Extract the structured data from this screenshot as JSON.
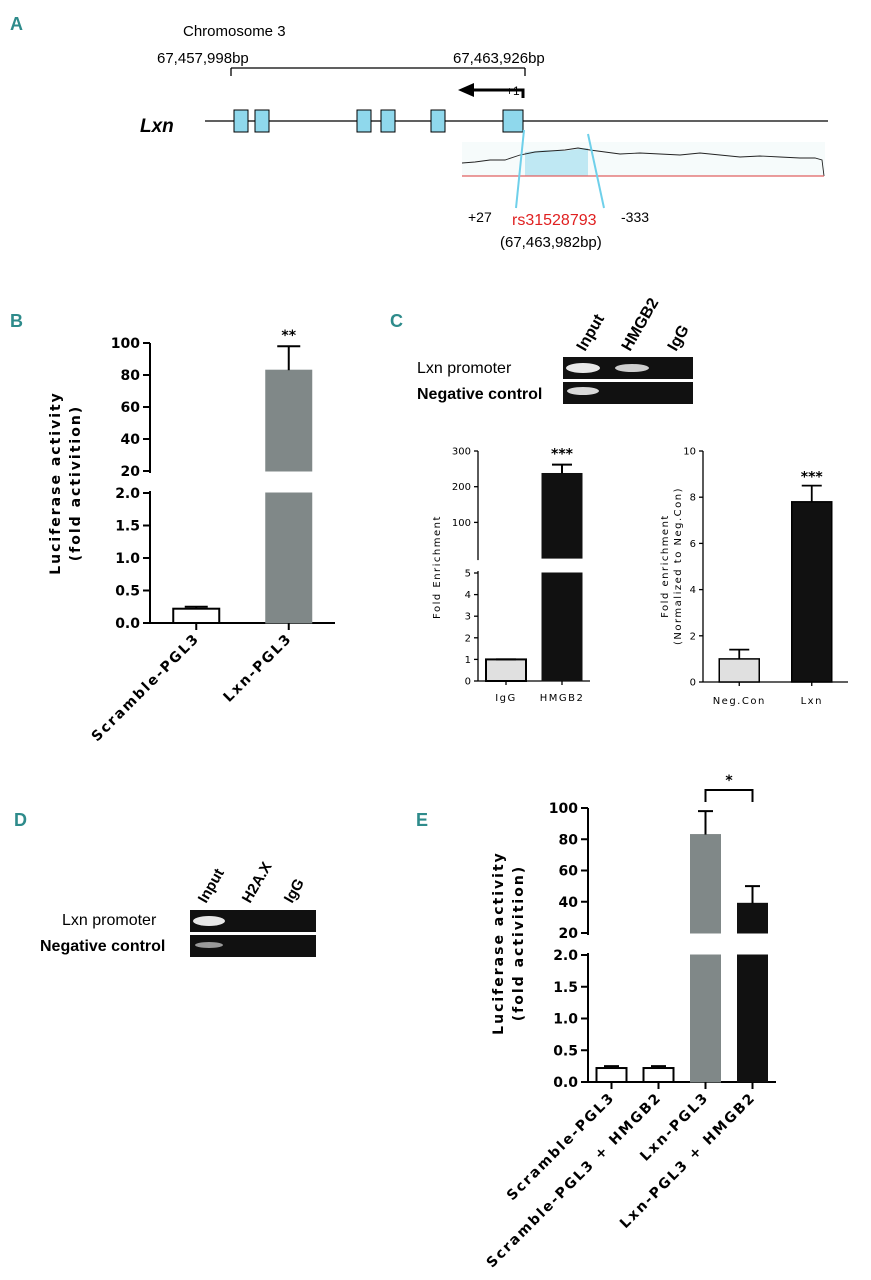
{
  "panels": {
    "A": {
      "label": "A",
      "chromosome": "Chromosome 3",
      "start_bp": "67,457,998bp",
      "end_bp": "67,463,926bp",
      "tss": "+1",
      "gene": "Lxn",
      "left_pos": "+27",
      "snp": "rs31528793",
      "snp_bp": "(67,463,982bp)",
      "right_pos": "-333",
      "snp_color": "#e02020",
      "exon_color": "#8fd8ec"
    },
    "B": {
      "label": "B"
    },
    "C": {
      "label": "C",
      "gel_lanes": [
        "Input",
        "HMGB2",
        "IgG"
      ],
      "gel_rows": [
        "Lxn promoter",
        "Negative control"
      ]
    },
    "D": {
      "label": "D",
      "gel_lanes": [
        "Input",
        "H2A.X",
        "IgG"
      ],
      "gel_rows": [
        "Lxn promoter",
        "Negative control"
      ]
    },
    "E": {
      "label": "E"
    }
  },
  "chart_data": [
    {
      "id": "B",
      "type": "bar",
      "categories": [
        "Scramble-PGL3",
        "Lxn-PGL3"
      ],
      "values": [
        0.22,
        83
      ],
      "errors": [
        0.03,
        15
      ],
      "colors": [
        "#ffffff",
        "#808888"
      ],
      "ylabel": "Luciferase activity\n(fold activition)",
      "axis_segments": [
        [
          0,
          2.0
        ],
        [
          20,
          100
        ]
      ],
      "yticks_lower": [
        "0.0",
        "0.5",
        "1.0",
        "1.5",
        "2.0"
      ],
      "yticks_upper": [
        "20",
        "40",
        "60",
        "80",
        "100"
      ],
      "significance": [
        "",
        "**"
      ]
    },
    {
      "id": "C-left",
      "type": "bar",
      "categories": [
        "IgG",
        "HMGB2"
      ],
      "values": [
        1,
        237
      ],
      "errors": [
        0,
        25
      ],
      "colors": [
        "#e0e0e0",
        "#111111"
      ],
      "ylabel": "Fold Enrichment",
      "axis_segments": [
        [
          0,
          5
        ],
        [
          20,
          300
        ]
      ],
      "yticks_lower": [
        "0",
        "1",
        "2",
        "3",
        "4",
        "5"
      ],
      "yticks_upper": [
        "100",
        "200",
        "300"
      ],
      "significance": [
        "",
        "***"
      ]
    },
    {
      "id": "C-right",
      "type": "bar",
      "categories": [
        "Neg.Con",
        "Lxn"
      ],
      "values": [
        1.0,
        7.8
      ],
      "errors": [
        0.4,
        0.7
      ],
      "colors": [
        "#e0e0e0",
        "#111111"
      ],
      "ylabel": "Fold enrichment\n(Normalized to Neg.Con)",
      "ylim": [
        0,
        10
      ],
      "yticks": [
        "0",
        "2",
        "4",
        "6",
        "8",
        "10"
      ],
      "significance": [
        "",
        "***"
      ]
    },
    {
      "id": "E",
      "type": "bar",
      "categories": [
        "Scramble-PGL3",
        "Scramble-PGL3 + HMGB2",
        "Lxn-PGL3",
        "Lxn-PGL3 + HMGB2"
      ],
      "values": [
        0.22,
        0.22,
        83,
        39
      ],
      "errors": [
        0.03,
        0.03,
        15,
        11
      ],
      "colors": [
        "#ffffff",
        "#ffffff",
        "#808888",
        "#111111"
      ],
      "ylabel": "Luciferase activity\n(fold activition)",
      "axis_segments": [
        [
          0,
          2.0
        ],
        [
          20,
          100
        ]
      ],
      "yticks_lower": [
        "0.0",
        "0.5",
        "1.0",
        "1.5",
        "2.0"
      ],
      "yticks_upper": [
        "20",
        "40",
        "60",
        "80",
        "100"
      ],
      "significance_bracket": {
        "between": [
          "Lxn-PGL3",
          "Lxn-PGL3 + HMGB2"
        ],
        "label": "*"
      }
    }
  ]
}
